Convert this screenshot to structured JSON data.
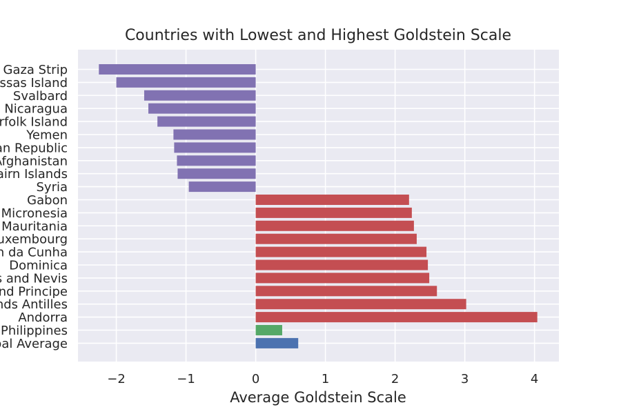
{
  "chart_data": {
    "type": "bar",
    "orientation": "horizontal",
    "title": "Countries with Lowest and Highest Goldstein Scale",
    "xlabel": "Average Goldstein Scale",
    "ylabel": "",
    "xlim": [
      -2.55,
      4.35
    ],
    "xticks": [
      -2,
      -1,
      0,
      1,
      2,
      3,
      4
    ],
    "xtick_labels": [
      "−2",
      "−1",
      "0",
      "1",
      "2",
      "3",
      "4"
    ],
    "grid": true,
    "categories": [
      "Gaza Strip",
      "Juan de Nova/Bassas Island",
      "Svalbard",
      "Nicaragua",
      "Norfolk Island",
      "Yemen",
      "Central African Republic",
      "Afghanistan",
      "Pitcairn Islands",
      "Syria",
      "Gabon",
      "Micronesia ",
      "Mauritania",
      "Luxembourg",
      "Tristan da Cunha",
      "Dominica",
      "Saint Kitts and Nevis",
      "Sao Tome and Principe",
      "Netherlands Antilles",
      "Andorra",
      "Philippines",
      "Global Average"
    ],
    "values": [
      -2.25,
      -2.0,
      -1.6,
      -1.54,
      -1.41,
      -1.18,
      -1.17,
      -1.13,
      -1.12,
      -0.96,
      2.2,
      2.24,
      2.27,
      2.31,
      2.45,
      2.47,
      2.49,
      2.6,
      3.02,
      4.04,
      0.38,
      0.61
    ],
    "groups": [
      "lowest",
      "lowest",
      "lowest",
      "lowest",
      "lowest",
      "lowest",
      "lowest",
      "lowest",
      "lowest",
      "lowest",
      "highest",
      "highest",
      "highest",
      "highest",
      "highest",
      "highest",
      "highest",
      "highest",
      "highest",
      "highest",
      "philippines",
      "global"
    ],
    "colors": {
      "lowest": "#8172b2",
      "highest": "#c44e52",
      "philippines": "#55a868",
      "global": "#4c72b0",
      "plot_background": "#eaeaf2",
      "grid": "#ffffff"
    }
  }
}
